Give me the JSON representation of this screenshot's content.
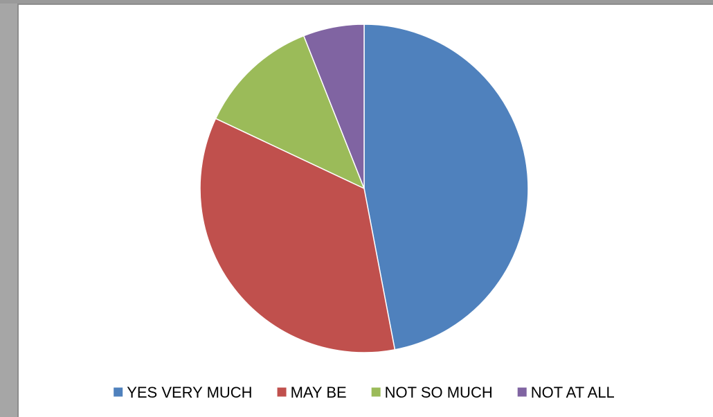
{
  "chart_data": {
    "type": "pie",
    "title": "",
    "categories": [
      "YES VERY MUCH",
      "MAY BE",
      "NOT SO MUCH",
      "NOT AT ALL"
    ],
    "values": [
      47,
      35,
      12,
      6
    ],
    "colors": [
      "#4f81bd",
      "#c0504d",
      "#9bbb59",
      "#8064a2"
    ],
    "start_angle_deg": 0,
    "direction": "clockwise",
    "legend": {
      "position": "bottom",
      "entries": [
        "YES VERY MUCH",
        "MAY BE",
        "NOT SO MUCH",
        "NOT AT ALL"
      ]
    }
  }
}
